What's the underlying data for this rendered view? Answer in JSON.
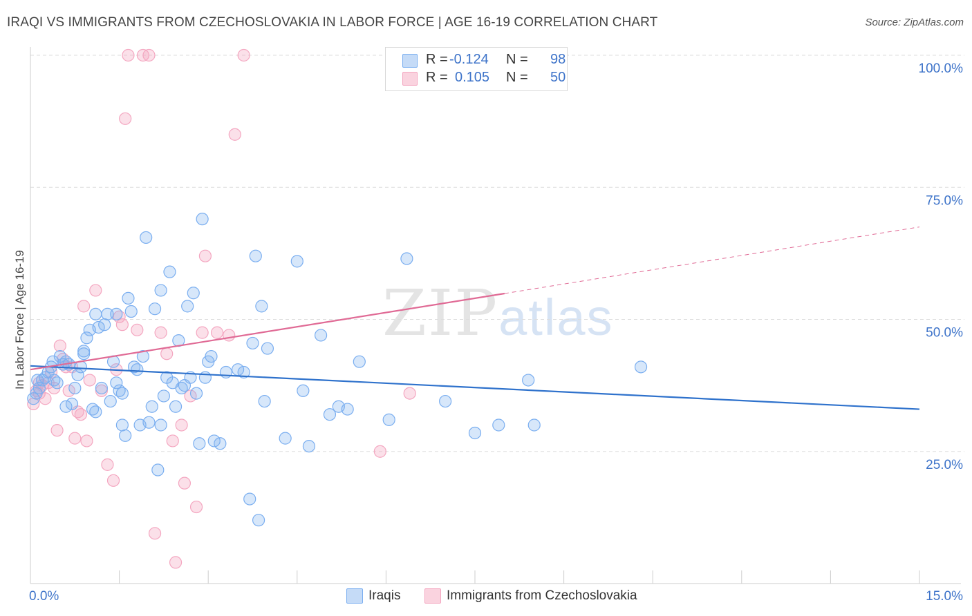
{
  "title": "IRAQI VS IMMIGRANTS FROM CZECHOSLOVAKIA IN LABOR FORCE | AGE 16-19 CORRELATION CHART",
  "source": "Source: ZipAtlas.com",
  "watermark": {
    "zip": "ZIP",
    "atlas": "atlas"
  },
  "legend": {
    "rows": [
      {
        "r_label": "R =",
        "r_value": "-0.124",
        "n_label": "N =",
        "n_value": "98",
        "color": "#7aaef0"
      },
      {
        "r_label": "R =",
        "r_value": "0.105",
        "n_label": "N =",
        "n_value": "50",
        "color": "#f4a6c0"
      }
    ]
  },
  "bottom_legend": {
    "series1": "Iraqis",
    "series2": "Immigrants from Czechoslovakia"
  },
  "chart_data": {
    "type": "scatter",
    "title": "IRAQI VS IMMIGRANTS FROM CZECHOSLOVAKIA IN LABOR FORCE | AGE 16-19 CORRELATION CHART",
    "xlabel": "",
    "ylabel": "In Labor Force | Age 16-19",
    "xlim": [
      0,
      15
    ],
    "ylim": [
      0,
      100
    ],
    "x_tick_labels": [
      "0.0%",
      "15.0%"
    ],
    "y_ticks": [
      25,
      50,
      75,
      100
    ],
    "y_tick_labels": [
      "25.0%",
      "50.0%",
      "75.0%",
      "100.0%"
    ],
    "grid": true,
    "series": [
      {
        "name": "Iraqis",
        "color": "#7aaef0",
        "line_color": "#2f72cc",
        "trend": {
          "x": [
            0,
            15
          ],
          "y": [
            41.2,
            33.0
          ],
          "dashed_from": null
        },
        "points": [
          [
            0.05,
            35.0
          ],
          [
            0.1,
            36.0
          ],
          [
            0.12,
            38.5
          ],
          [
            0.15,
            37.0
          ],
          [
            0.2,
            38.5
          ],
          [
            0.25,
            39.0
          ],
          [
            0.3,
            40.0
          ],
          [
            0.35,
            41.0
          ],
          [
            0.38,
            42.0
          ],
          [
            0.4,
            38.5
          ],
          [
            0.45,
            38.0
          ],
          [
            0.5,
            43.0
          ],
          [
            0.55,
            41.5
          ],
          [
            0.6,
            42.0
          ],
          [
            0.65,
            41.5
          ],
          [
            0.7,
            34.0
          ],
          [
            0.75,
            37.0
          ],
          [
            0.8,
            39.5
          ],
          [
            0.85,
            41.0
          ],
          [
            0.9,
            43.5
          ],
          [
            0.95,
            46.5
          ],
          [
            1.0,
            48.0
          ],
          [
            1.05,
            33.0
          ],
          [
            1.1,
            32.5
          ],
          [
            1.15,
            48.5
          ],
          [
            1.2,
            37.0
          ],
          [
            1.25,
            49.0
          ],
          [
            1.3,
            51.0
          ],
          [
            1.35,
            34.5
          ],
          [
            1.4,
            42.0
          ],
          [
            1.45,
            38.0
          ],
          [
            1.5,
            36.5
          ],
          [
            1.55,
            36.0
          ],
          [
            1.6,
            28.0
          ],
          [
            1.65,
            54.0
          ],
          [
            1.7,
            51.5
          ],
          [
            1.75,
            41.0
          ],
          [
            1.8,
            40.5
          ],
          [
            1.85,
            30.0
          ],
          [
            1.9,
            43.0
          ],
          [
            1.95,
            65.5
          ],
          [
            2.0,
            30.5
          ],
          [
            2.05,
            33.5
          ],
          [
            2.1,
            52.0
          ],
          [
            2.15,
            21.5
          ],
          [
            2.2,
            55.5
          ],
          [
            2.25,
            35.5
          ],
          [
            2.3,
            39.0
          ],
          [
            2.35,
            59.0
          ],
          [
            2.4,
            38.0
          ],
          [
            2.45,
            33.5
          ],
          [
            2.5,
            46.0
          ],
          [
            2.55,
            37.0
          ],
          [
            2.6,
            37.5
          ],
          [
            2.65,
            52.5
          ],
          [
            2.7,
            39.0
          ],
          [
            2.75,
            55.0
          ],
          [
            2.8,
            36.0
          ],
          [
            2.85,
            26.5
          ],
          [
            2.9,
            69.0
          ],
          [
            2.95,
            39.0
          ],
          [
            3.0,
            42.0
          ],
          [
            3.1,
            27.0
          ],
          [
            3.2,
            26.5
          ],
          [
            3.05,
            43.0
          ],
          [
            3.3,
            40.0
          ],
          [
            3.5,
            40.5
          ],
          [
            3.6,
            40.0
          ],
          [
            3.7,
            16.0
          ],
          [
            3.75,
            45.5
          ],
          [
            3.8,
            62.0
          ],
          [
            3.85,
            12.0
          ],
          [
            3.9,
            52.5
          ],
          [
            3.95,
            34.5
          ],
          [
            4.0,
            44.5
          ],
          [
            4.3,
            27.5
          ],
          [
            4.5,
            61.0
          ],
          [
            4.6,
            36.5
          ],
          [
            4.7,
            26.0
          ],
          [
            4.9,
            47.0
          ],
          [
            5.05,
            32.0
          ],
          [
            5.2,
            33.5
          ],
          [
            5.35,
            33.0
          ],
          [
            5.55,
            42.0
          ],
          [
            6.05,
            31.0
          ],
          [
            6.35,
            61.5
          ],
          [
            7.0,
            34.5
          ],
          [
            7.5,
            28.5
          ],
          [
            7.9,
            30.0
          ],
          [
            8.4,
            38.5
          ],
          [
            8.5,
            30.0
          ],
          [
            10.3,
            41.0
          ],
          [
            1.1,
            51.0
          ],
          [
            0.6,
            33.5
          ],
          [
            0.9,
            44.0
          ],
          [
            1.45,
            51.0
          ],
          [
            1.55,
            30.0
          ],
          [
            2.2,
            30.0
          ]
        ]
      },
      {
        "name": "Immigrants from Czechoslovakia",
        "color": "#f4a6c0",
        "line_color": "#e06a95",
        "trend": {
          "x": [
            0,
            15
          ],
          "y": [
            40.5,
            67.5
          ],
          "dashed_from": 8.0
        },
        "points": [
          [
            0.05,
            34.0
          ],
          [
            0.1,
            36.5
          ],
          [
            0.15,
            38.0
          ],
          [
            0.2,
            37.5
          ],
          [
            0.25,
            35.0
          ],
          [
            0.3,
            38.0
          ],
          [
            0.35,
            40.0
          ],
          [
            0.4,
            37.0
          ],
          [
            0.45,
            29.0
          ],
          [
            0.5,
            45.0
          ],
          [
            0.55,
            42.5
          ],
          [
            0.6,
            41.0
          ],
          [
            0.65,
            36.5
          ],
          [
            0.7,
            41.0
          ],
          [
            0.75,
            27.5
          ],
          [
            0.8,
            32.5
          ],
          [
            0.85,
            32.0
          ],
          [
            0.9,
            52.5
          ],
          [
            0.95,
            27.0
          ],
          [
            1.0,
            38.5
          ],
          [
            1.1,
            55.5
          ],
          [
            1.2,
            36.5
          ],
          [
            1.3,
            22.5
          ],
          [
            1.4,
            19.5
          ],
          [
            1.45,
            40.5
          ],
          [
            1.5,
            50.5
          ],
          [
            1.55,
            49.0
          ],
          [
            1.6,
            88.0
          ],
          [
            1.65,
            100.0
          ],
          [
            1.8,
            48.0
          ],
          [
            1.9,
            100.0
          ],
          [
            2.0,
            100.0
          ],
          [
            2.1,
            9.5
          ],
          [
            2.2,
            47.5
          ],
          [
            2.3,
            43.5
          ],
          [
            2.4,
            27.0
          ],
          [
            2.45,
            4.0
          ],
          [
            2.55,
            30.0
          ],
          [
            2.6,
            19.0
          ],
          [
            2.7,
            35.5
          ],
          [
            2.8,
            14.5
          ],
          [
            2.9,
            47.5
          ],
          [
            2.95,
            62.0
          ],
          [
            3.15,
            47.5
          ],
          [
            3.35,
            47.0
          ],
          [
            3.45,
            85.0
          ],
          [
            3.6,
            100.0
          ],
          [
            5.9,
            25.0
          ],
          [
            6.4,
            36.0
          ],
          [
            0.15,
            36.0
          ]
        ]
      }
    ]
  }
}
